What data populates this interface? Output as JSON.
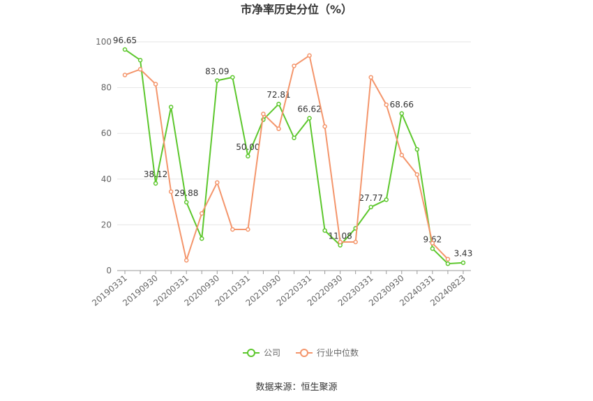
{
  "chart_data": {
    "type": "line",
    "title": "市净率历史分位（%）",
    "categories": [
      "20190331",
      null,
      "20190930",
      null,
      "20200331",
      null,
      "20200930",
      null,
      "20210331",
      null,
      "20210930",
      null,
      "20220331",
      null,
      "20220930",
      null,
      "20230331",
      null,
      "20230930",
      null,
      "20240331",
      null,
      "20240823"
    ],
    "series": [
      {
        "name": "公司",
        "color": "#5cc72c",
        "values": [
          96.65,
          92,
          38.12,
          71.5,
          29.88,
          14,
          83.09,
          84.5,
          50.0,
          66,
          72.81,
          58,
          66.62,
          17.5,
          11.08,
          18.5,
          27.77,
          31,
          68.66,
          53,
          9.62,
          3,
          3.43
        ],
        "value_labels": [
          "96.65",
          null,
          "38.12",
          null,
          "29.88",
          null,
          "83.09",
          null,
          "50.00",
          null,
          "72.81",
          null,
          "66.62",
          null,
          "11.08",
          null,
          "27.77",
          null,
          "68.66",
          null,
          "9.62",
          null,
          "3.43"
        ]
      },
      {
        "name": "行业中位数",
        "color": "#f4956b",
        "values": [
          85.5,
          88,
          81.5,
          34.5,
          4.5,
          25,
          38.5,
          18,
          18,
          68.5,
          62,
          89.5,
          94,
          63,
          12.5,
          12.5,
          84.5,
          72.5,
          50.5,
          42,
          12,
          5,
          null
        ]
      }
    ],
    "ylim": [
      0,
      100
    ],
    "yticks": [
      0,
      20,
      40,
      60,
      80,
      100
    ],
    "grid": true,
    "source": "数据来源：恒生聚源"
  }
}
